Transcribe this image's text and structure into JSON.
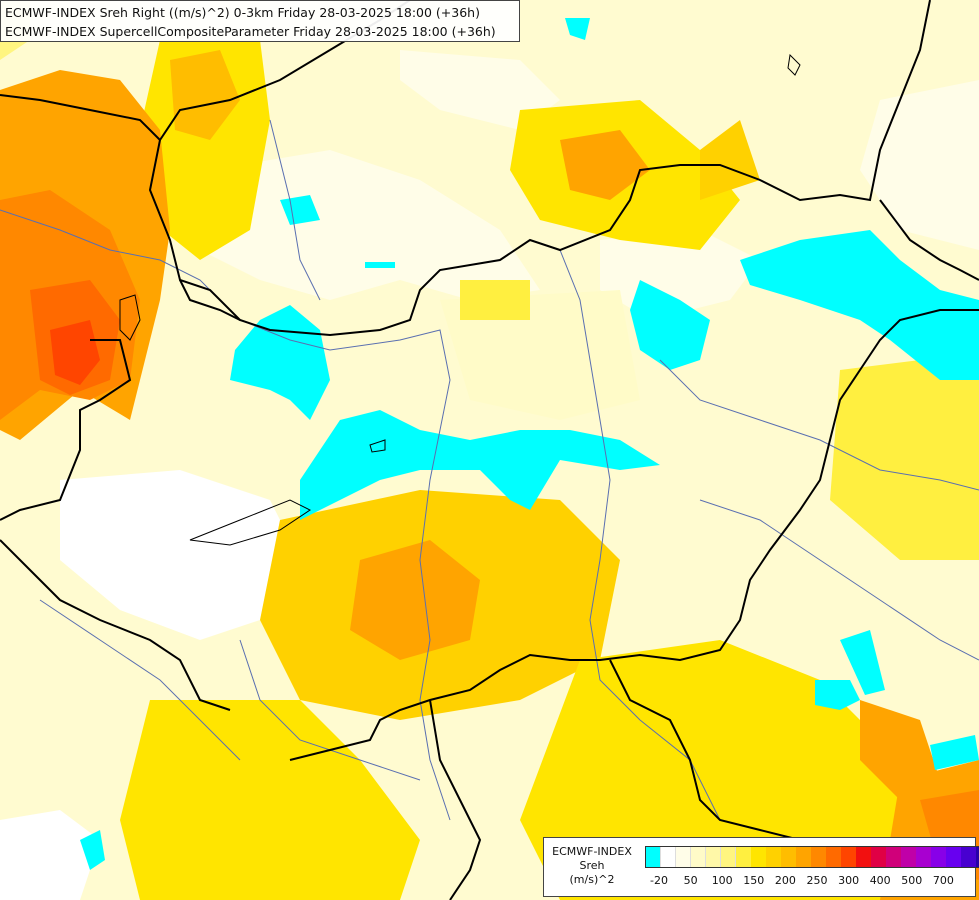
{
  "header": {
    "line1": "ECMWF-INDEX Sreh Right ((m/s)^2) 0-3km Friday 28-03-2025 18:00 (+36h)",
    "line2": "ECMWF-INDEX SupercellCompositeParameter Friday 28-03-2025 18:00 (+36h)"
  },
  "legend": {
    "title_lines": [
      "ECMWF-INDEX",
      "Sreh",
      "(m/s)^2"
    ],
    "colors": [
      "#00ffff",
      "#ffffff",
      "#fffde8",
      "#fffbc8",
      "#fff8a8",
      "#fff580",
      "#ffef40",
      "#ffe500",
      "#ffd100",
      "#ffbd00",
      "#ffa400",
      "#ff8800",
      "#ff6a00",
      "#ff4500",
      "#f21010",
      "#e00045",
      "#d0007a",
      "#c000a8",
      "#a800d0",
      "#8800e8",
      "#6800f0",
      "#4800d0",
      "#2800a8",
      "#000080"
    ],
    "tick_labels": [
      "-20",
      "50",
      "100",
      "150",
      "200",
      "250",
      "300",
      "400",
      "500",
      "700"
    ]
  },
  "map": {
    "background_color": "#fffbd0",
    "border_color": "#000000",
    "river_color": "#5a6fb0"
  }
}
